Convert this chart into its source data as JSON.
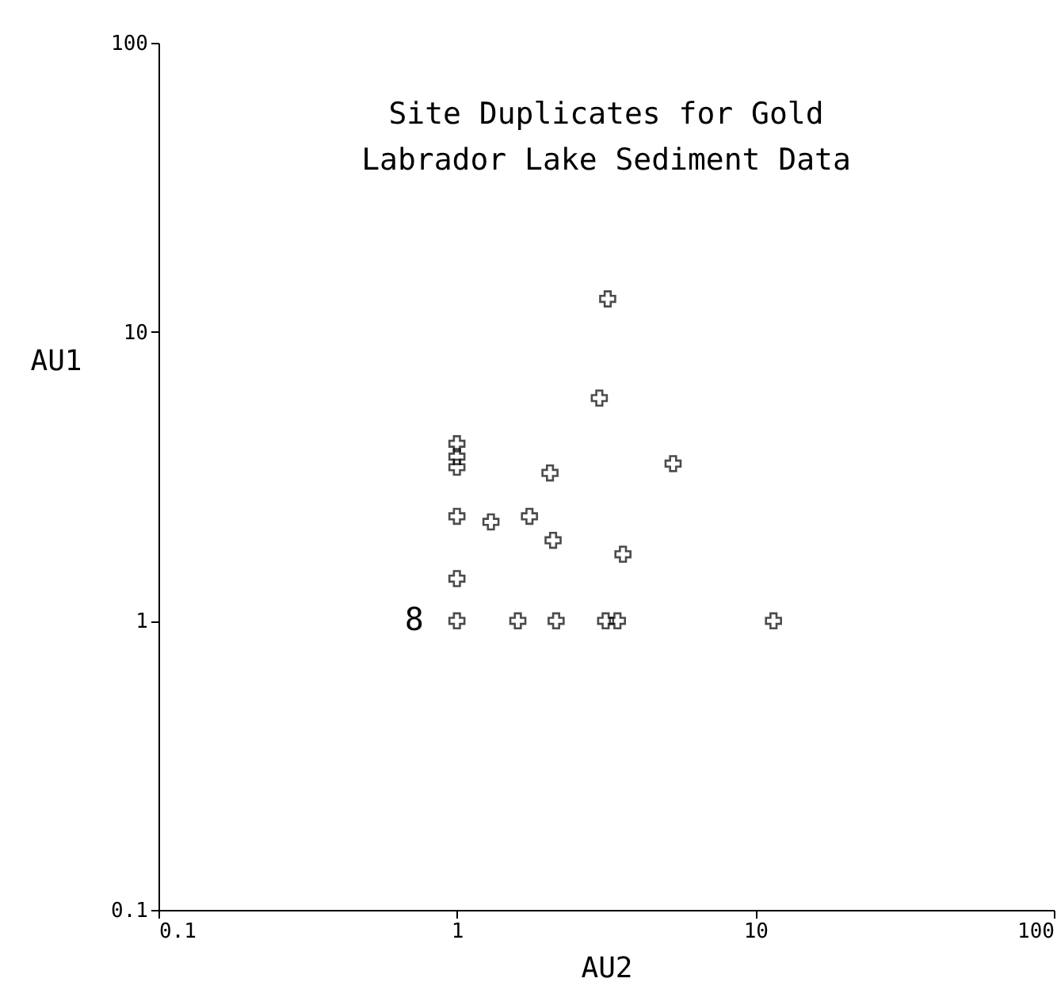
{
  "chart_data": {
    "type": "scatter",
    "title": "Site Duplicates for Gold",
    "subtitle": "Labrador Lake  Sediment Data",
    "xlabel": "AU2",
    "ylabel": "AU1",
    "x": [
      3.2,
      3.0,
      1,
      1,
      1,
      2.05,
      5.3,
      1,
      1.3,
      1.75,
      2.1,
      3.6,
      1,
      1,
      1.6,
      2.15,
      3.15,
      3.45,
      11.5
    ],
    "values": [
      13,
      5.9,
      4.1,
      3.7,
      3.4,
      3.25,
      3.5,
      2.3,
      2.2,
      2.3,
      1.9,
      1.7,
      1.4,
      1,
      1,
      1,
      1,
      1,
      1
    ],
    "color": "#000000",
    "marker": "cross",
    "log": "xy",
    "xlim": [
      0.1,
      100
    ],
    "ylim": [
      0.1,
      100
    ],
    "xticks": [
      0.1,
      1,
      10,
      100
    ],
    "yticks": [
      0.1,
      1,
      10,
      100
    ],
    "annotations": [
      {
        "text": "8",
        "x": 1,
        "y": 1
      }
    ]
  }
}
